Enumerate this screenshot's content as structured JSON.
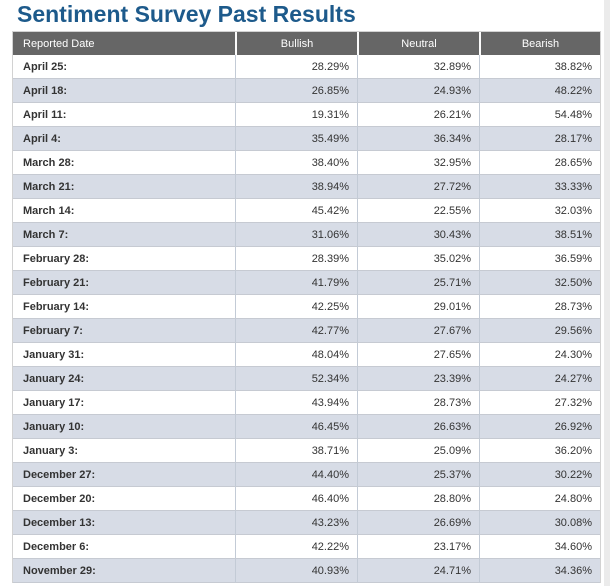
{
  "page": {
    "title": "Sentiment Survey Past Results"
  },
  "colors": {
    "title_text": "#1d5a8b",
    "header_background": "#666666",
    "header_text": "#ffffff",
    "row_alt_background": "#d7dce6",
    "row_background": "#ffffff",
    "cell_text": "#333333",
    "grid_border": "#c6cad2"
  },
  "table": {
    "columns": [
      "Reported Date",
      "Bullish",
      "Neutral",
      "Bearish"
    ],
    "rows": [
      [
        "April 25:",
        "28.29%",
        "32.89%",
        "38.82%"
      ],
      [
        "April 18:",
        "26.85%",
        "24.93%",
        "48.22%"
      ],
      [
        "April 11:",
        "19.31%",
        "26.21%",
        "54.48%"
      ],
      [
        "April 4:",
        "35.49%",
        "36.34%",
        "28.17%"
      ],
      [
        "March 28:",
        "38.40%",
        "32.95%",
        "28.65%"
      ],
      [
        "March 21:",
        "38.94%",
        "27.72%",
        "33.33%"
      ],
      [
        "March 14:",
        "45.42%",
        "22.55%",
        "32.03%"
      ],
      [
        "March 7:",
        "31.06%",
        "30.43%",
        "38.51%"
      ],
      [
        "February 28:",
        "28.39%",
        "35.02%",
        "36.59%"
      ],
      [
        "February 21:",
        "41.79%",
        "25.71%",
        "32.50%"
      ],
      [
        "February 14:",
        "42.25%",
        "29.01%",
        "28.73%"
      ],
      [
        "February 7:",
        "42.77%",
        "27.67%",
        "29.56%"
      ],
      [
        "January 31:",
        "48.04%",
        "27.65%",
        "24.30%"
      ],
      [
        "January 24:",
        "52.34%",
        "23.39%",
        "24.27%"
      ],
      [
        "January 17:",
        "43.94%",
        "28.73%",
        "27.32%"
      ],
      [
        "January 10:",
        "46.45%",
        "26.63%",
        "26.92%"
      ],
      [
        "January 3:",
        "38.71%",
        "25.09%",
        "36.20%"
      ],
      [
        "December 27:",
        "44.40%",
        "25.37%",
        "30.22%"
      ],
      [
        "December 20:",
        "46.40%",
        "28.80%",
        "24.80%"
      ],
      [
        "December 13:",
        "43.23%",
        "26.69%",
        "30.08%"
      ],
      [
        "December 6:",
        "42.22%",
        "23.17%",
        "34.60%"
      ],
      [
        "November 29:",
        "40.93%",
        "24.71%",
        "34.36%"
      ]
    ]
  }
}
